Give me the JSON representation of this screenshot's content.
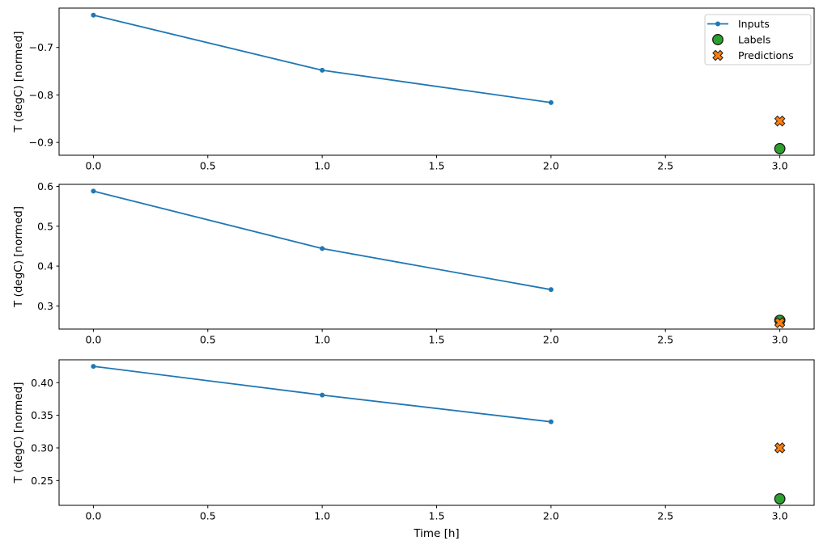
{
  "figure": {
    "background": "#ffffff",
    "axes_color": "#000000",
    "xlabel": "Time [h]",
    "ylabel": "T (degC) [normed]",
    "legend": {
      "position": "upper-right-subplot-1",
      "border_color": "#cccccc",
      "items": [
        {
          "label": "Inputs",
          "marker": "line",
          "color": "#1f77b4",
          "edge": "#1f77b4"
        },
        {
          "label": "Labels",
          "marker": "circle",
          "color": "#2ca02c",
          "edge": "#1a1a1a"
        },
        {
          "label": "Predictions",
          "marker": "x",
          "color": "#ff7f0e",
          "edge": "#1a1a1a"
        }
      ]
    }
  },
  "chart_data": [
    {
      "type": "line",
      "title": "",
      "xlabel": "",
      "ylabel": "T (degC) [normed]",
      "grid": false,
      "xlim": [
        -0.15,
        3.15
      ],
      "ylim": [
        -0.927,
        -0.617
      ],
      "x_ticks": {
        "values": [
          0.0,
          0.5,
          1.0,
          1.5,
          2.0,
          2.5,
          3.0
        ],
        "labels": [
          "0.0",
          "0.5",
          "1.0",
          "1.5",
          "2.0",
          "2.5",
          "3.0"
        ]
      },
      "y_ticks": {
        "values": [
          -0.9,
          -0.8,
          -0.7
        ],
        "labels": [
          "−0.9",
          "−0.8",
          "−0.7"
        ]
      },
      "series": [
        {
          "name": "Inputs",
          "marker": "line",
          "color": "#1f77b4",
          "edge": "#1f77b4",
          "x": [
            0,
            1,
            2
          ],
          "y": [
            -0.632,
            -0.748,
            -0.816
          ]
        },
        {
          "name": "Labels",
          "marker": "circle",
          "color": "#2ca02c",
          "edge": "#1a1a1a",
          "x": [
            3
          ],
          "y": [
            -0.913
          ]
        },
        {
          "name": "Predictions",
          "marker": "x",
          "color": "#ff7f0e",
          "edge": "#1a1a1a",
          "x": [
            3
          ],
          "y": [
            -0.855
          ]
        }
      ],
      "show_legend": true,
      "show_xlabel": false
    },
    {
      "type": "line",
      "title": "",
      "xlabel": "",
      "ylabel": "T (degC) [normed]",
      "grid": false,
      "xlim": [
        -0.15,
        3.15
      ],
      "ylim": [
        0.242,
        0.605
      ],
      "x_ticks": {
        "values": [
          0.0,
          0.5,
          1.0,
          1.5,
          2.0,
          2.5,
          3.0
        ],
        "labels": [
          "0.0",
          "0.5",
          "1.0",
          "1.5",
          "2.0",
          "2.5",
          "3.0"
        ]
      },
      "y_ticks": {
        "values": [
          0.3,
          0.4,
          0.5,
          0.6
        ],
        "labels": [
          "0.3",
          "0.4",
          "0.5",
          "0.6"
        ]
      },
      "series": [
        {
          "name": "Inputs",
          "marker": "line",
          "color": "#1f77b4",
          "edge": "#1f77b4",
          "x": [
            0,
            1,
            2
          ],
          "y": [
            0.588,
            0.444,
            0.341
          ]
        },
        {
          "name": "Labels",
          "marker": "circle",
          "color": "#2ca02c",
          "edge": "#1a1a1a",
          "x": [
            3
          ],
          "y": [
            0.264
          ]
        },
        {
          "name": "Predictions",
          "marker": "x",
          "color": "#ff7f0e",
          "edge": "#1a1a1a",
          "x": [
            3
          ],
          "y": [
            0.258
          ]
        }
      ],
      "show_legend": false,
      "show_xlabel": false
    },
    {
      "type": "line",
      "title": "",
      "xlabel": "Time [h]",
      "ylabel": "T (degC) [normed]",
      "grid": false,
      "xlim": [
        -0.15,
        3.15
      ],
      "ylim": [
        0.212,
        0.435
      ],
      "x_ticks": {
        "values": [
          0.0,
          0.5,
          1.0,
          1.5,
          2.0,
          2.5,
          3.0
        ],
        "labels": [
          "0.0",
          "0.5",
          "1.0",
          "1.5",
          "2.0",
          "2.5",
          "3.0"
        ]
      },
      "y_ticks": {
        "values": [
          0.25,
          0.3,
          0.35,
          0.4
        ],
        "labels": [
          "0.25",
          "0.30",
          "0.35",
          "0.40"
        ]
      },
      "series": [
        {
          "name": "Inputs",
          "marker": "line",
          "color": "#1f77b4",
          "edge": "#1f77b4",
          "x": [
            0,
            1,
            2
          ],
          "y": [
            0.425,
            0.381,
            0.34
          ]
        },
        {
          "name": "Labels",
          "marker": "circle",
          "color": "#2ca02c",
          "edge": "#1a1a1a",
          "x": [
            3
          ],
          "y": [
            0.222
          ]
        },
        {
          "name": "Predictions",
          "marker": "x",
          "color": "#ff7f0e",
          "edge": "#1a1a1a",
          "x": [
            3
          ],
          "y": [
            0.3
          ]
        }
      ],
      "show_legend": false,
      "show_xlabel": true
    }
  ]
}
